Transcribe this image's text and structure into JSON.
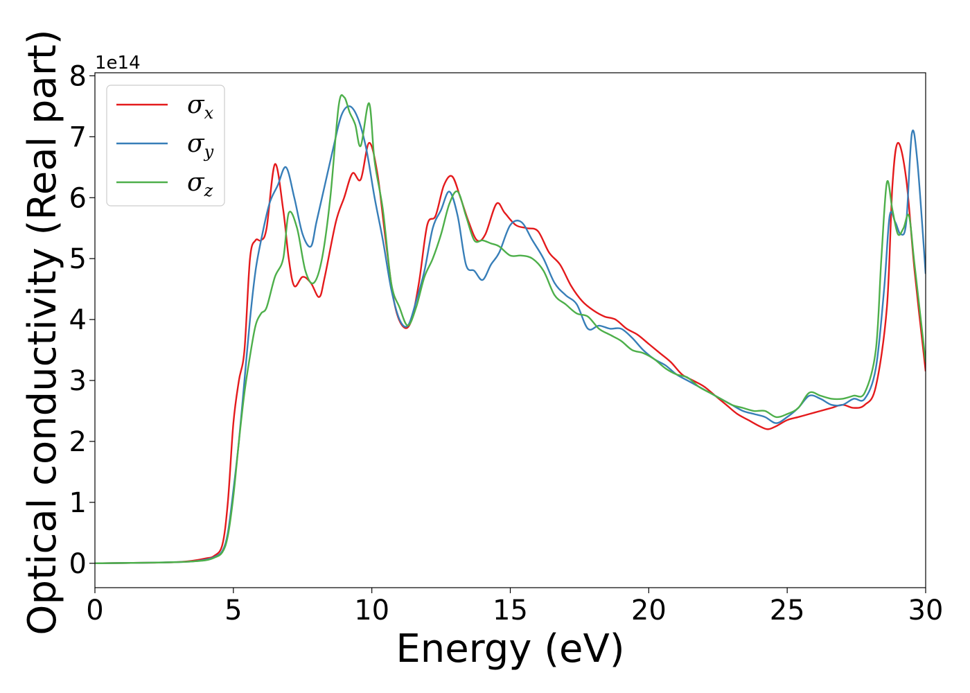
{
  "chart_data": {
    "type": "line",
    "xlabel": "Energy (eV)",
    "ylabel": "Optical conductivity (Real part)",
    "y_offset_label": "1e14",
    "xlim": [
      0,
      30
    ],
    "ylim": [
      -0.4,
      8.05
    ],
    "x_ticks": [
      0,
      5,
      10,
      15,
      20,
      25,
      30
    ],
    "y_ticks": [
      0,
      1,
      2,
      3,
      4,
      5,
      6,
      7,
      8
    ],
    "grid": false,
    "legend_position": "top-left",
    "series": [
      {
        "name": "σx",
        "symbol": "σ",
        "subscript": "x",
        "color": "#e41a1c",
        "x": [
          0,
          2,
          3,
          3.5,
          4,
          4.3,
          4.6,
          4.8,
          5.0,
          5.2,
          5.4,
          5.6,
          5.8,
          6.0,
          6.2,
          6.5,
          6.8,
          7.0,
          7.2,
          7.5,
          7.8,
          8.1,
          8.3,
          8.7,
          9.0,
          9.3,
          9.6,
          9.9,
          10.2,
          10.5,
          10.8,
          11.1,
          11.4,
          11.7,
          12.0,
          12.3,
          12.6,
          12.9,
          13.2,
          13.5,
          13.8,
          14.1,
          14.5,
          14.8,
          15.2,
          15.6,
          16.0,
          16.4,
          16.8,
          17.2,
          17.6,
          18.0,
          18.4,
          18.8,
          19.2,
          19.6,
          20.0,
          20.4,
          20.8,
          21.2,
          21.6,
          22.0,
          22.4,
          22.8,
          23.2,
          23.6,
          24.0,
          24.3,
          24.6,
          25.0,
          25.4,
          25.8,
          26.2,
          26.6,
          27.0,
          27.4,
          27.8,
          28.2,
          28.6,
          28.8,
          29.0,
          29.3,
          29.6,
          30.0
        ],
        "y": [
          0,
          0.01,
          0.02,
          0.04,
          0.08,
          0.12,
          0.3,
          1.0,
          2.3,
          3.0,
          3.5,
          5.0,
          5.3,
          5.3,
          5.5,
          6.55,
          5.8,
          5.0,
          4.55,
          4.7,
          4.6,
          4.37,
          4.7,
          5.6,
          6.0,
          6.4,
          6.3,
          6.9,
          6.4,
          5.3,
          4.3,
          3.9,
          3.95,
          4.6,
          5.55,
          5.7,
          6.2,
          6.35,
          6.0,
          5.6,
          5.3,
          5.4,
          5.9,
          5.75,
          5.55,
          5.5,
          5.45,
          5.1,
          4.9,
          4.55,
          4.3,
          4.15,
          4.05,
          4.0,
          3.85,
          3.75,
          3.6,
          3.45,
          3.3,
          3.1,
          3.0,
          2.9,
          2.75,
          2.6,
          2.45,
          2.35,
          2.25,
          2.2,
          2.25,
          2.35,
          2.4,
          2.45,
          2.5,
          2.55,
          2.6,
          2.55,
          2.6,
          2.9,
          4.2,
          6.2,
          6.9,
          6.3,
          4.8,
          3.15
        ]
      },
      {
        "name": "σy",
        "symbol": "σ",
        "subscript": "y",
        "color": "#377eb8",
        "x": [
          0,
          2,
          3,
          3.5,
          4,
          4.3,
          4.6,
          4.8,
          5.0,
          5.2,
          5.4,
          5.6,
          5.8,
          6.0,
          6.3,
          6.6,
          6.9,
          7.2,
          7.5,
          7.8,
          8.0,
          8.3,
          8.6,
          8.9,
          9.2,
          9.5,
          9.8,
          10.1,
          10.4,
          10.7,
          11.0,
          11.3,
          11.6,
          11.9,
          12.2,
          12.5,
          12.8,
          13.1,
          13.4,
          13.7,
          14.0,
          14.3,
          14.6,
          15.0,
          15.4,
          15.8,
          16.2,
          16.6,
          17.0,
          17.4,
          17.8,
          18.2,
          18.6,
          19.0,
          19.4,
          19.8,
          20.2,
          20.6,
          21.0,
          21.4,
          21.8,
          22.2,
          22.6,
          23.0,
          23.4,
          23.8,
          24.2,
          24.6,
          25.0,
          25.4,
          25.8,
          26.2,
          26.6,
          27.0,
          27.4,
          27.8,
          28.2,
          28.5,
          28.7,
          28.9,
          29.1,
          29.3,
          29.5,
          29.7,
          30.0
        ],
        "y": [
          0,
          0.01,
          0.02,
          0.03,
          0.06,
          0.1,
          0.2,
          0.5,
          1.2,
          2.0,
          3.0,
          4.0,
          4.8,
          5.3,
          5.9,
          6.2,
          6.5,
          6.0,
          5.4,
          5.2,
          5.6,
          6.2,
          6.8,
          7.35,
          7.5,
          7.3,
          6.8,
          6.0,
          5.3,
          4.5,
          4.0,
          3.9,
          4.3,
          4.8,
          5.5,
          5.8,
          6.1,
          5.7,
          4.9,
          4.8,
          4.65,
          4.9,
          5.1,
          5.55,
          5.6,
          5.3,
          5.0,
          4.6,
          4.4,
          4.25,
          3.85,
          3.9,
          3.85,
          3.85,
          3.7,
          3.5,
          3.35,
          3.25,
          3.1,
          3.0,
          2.9,
          2.8,
          2.7,
          2.6,
          2.5,
          2.45,
          2.4,
          2.3,
          2.4,
          2.55,
          2.75,
          2.7,
          2.6,
          2.6,
          2.7,
          2.7,
          3.2,
          4.5,
          5.7,
          5.6,
          5.4,
          5.6,
          7.05,
          6.6,
          4.75
        ]
      },
      {
        "name": "σz",
        "symbol": "σ",
        "subscript": "z",
        "color": "#4daf4a",
        "x": [
          0,
          2,
          3,
          3.5,
          4,
          4.3,
          4.6,
          4.8,
          5.0,
          5.2,
          5.4,
          5.6,
          5.8,
          6.0,
          6.2,
          6.5,
          6.8,
          7.0,
          7.3,
          7.6,
          7.9,
          8.2,
          8.5,
          8.8,
          9.0,
          9.2,
          9.4,
          9.6,
          9.9,
          10.1,
          10.4,
          10.7,
          11.0,
          11.3,
          11.6,
          11.9,
          12.2,
          12.5,
          12.8,
          13.1,
          13.4,
          13.7,
          14.0,
          14.3,
          14.6,
          15.0,
          15.4,
          15.8,
          16.2,
          16.6,
          17.0,
          17.4,
          17.8,
          18.2,
          18.6,
          19.0,
          19.4,
          19.8,
          20.2,
          20.6,
          21.0,
          21.4,
          21.8,
          22.2,
          22.6,
          23.0,
          23.4,
          23.8,
          24.2,
          24.6,
          25.0,
          25.4,
          25.8,
          26.2,
          26.6,
          27.0,
          27.4,
          27.8,
          28.2,
          28.4,
          28.6,
          28.8,
          29.0,
          29.2,
          29.4,
          29.6,
          30.0
        ],
        "y": [
          0,
          0.01,
          0.02,
          0.03,
          0.05,
          0.09,
          0.18,
          0.45,
          1.1,
          2.0,
          2.8,
          3.4,
          3.9,
          4.1,
          4.2,
          4.7,
          5.0,
          5.75,
          5.5,
          4.8,
          4.6,
          5.0,
          6.0,
          7.5,
          7.65,
          7.4,
          7.2,
          6.85,
          7.55,
          6.6,
          5.8,
          4.6,
          4.2,
          3.9,
          4.2,
          4.7,
          5.0,
          5.4,
          5.9,
          6.1,
          5.7,
          5.3,
          5.3,
          5.25,
          5.2,
          5.05,
          5.05,
          5.0,
          4.8,
          4.4,
          4.25,
          4.1,
          4.05,
          3.85,
          3.75,
          3.65,
          3.5,
          3.45,
          3.35,
          3.2,
          3.1,
          3.05,
          2.9,
          2.8,
          2.7,
          2.6,
          2.55,
          2.5,
          2.5,
          2.4,
          2.45,
          2.55,
          2.8,
          2.75,
          2.7,
          2.7,
          2.75,
          2.8,
          3.5,
          5.0,
          6.25,
          5.8,
          5.4,
          5.5,
          5.7,
          4.9,
          3.3
        ]
      }
    ]
  }
}
